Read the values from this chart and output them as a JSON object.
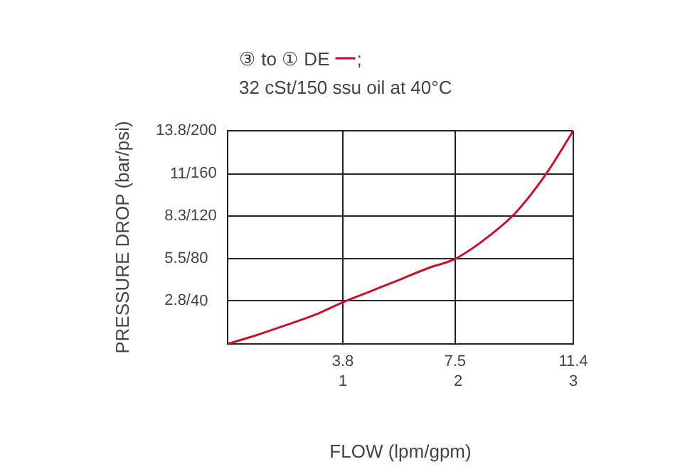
{
  "chart_data": {
    "type": "line",
    "xlabel": "FLOW (lpm/gpm)",
    "ylabel": "PRESSURE DROP (bar/psi)",
    "annotations": [
      ";",
      "32 cSt/150 ssu oil at 40°C"
    ],
    "xlim": [
      0,
      11.4
    ],
    "xticks": [
      3.8,
      7.5,
      11.4
    ],
    "x2lim": [
      0,
      3
    ],
    "x2ticks": [
      1,
      2,
      3
    ],
    "ylim": [
      0,
      13.8
    ],
    "yticks": [
      {
        "value": 2.8,
        "label": "2.8/"
      },
      {
        "value": 5.5,
        "label": "5.5/"
      },
      {
        "value": 8.3,
        "label": "8.3/"
      },
      {
        "value": 11,
        "label": "11/"
      },
      {
        "value": 13.8,
        "label": "13.8/"
      }
    ],
    "y2lim": [
      0,
      200
    ],
    "y2ticks": [
      40,
      80,
      120,
      160,
      200
    ],
    "grid": true,
    "legend": "top left",
    "line_style": "solid",
    "series": [
      {
        "name": "③ to ① DE",
        "color": "#c8102e",
        "x": [
          0,
          1,
          1.9,
          2.9,
          3.8,
          4.7,
          5.6,
          6.6,
          7.5,
          8.5,
          9.5,
          10.5,
          11.4
        ],
        "values": [
          0,
          0.6,
          1.2,
          1.9,
          2.7,
          3.4,
          4.1,
          4.9,
          5.5,
          6.8,
          8.5,
          11,
          13.8
        ]
      }
    ]
  }
}
